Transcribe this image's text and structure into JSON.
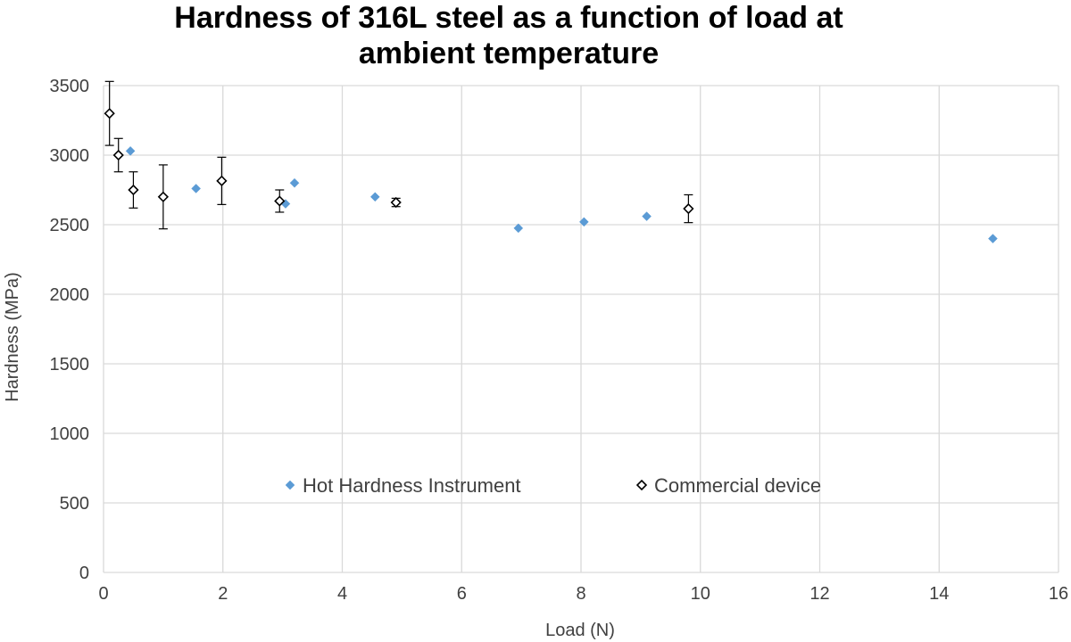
{
  "chart_data": {
    "type": "scatter",
    "title_lines": [
      "Hardness of 316L steel as a function of load at",
      "ambient temperature"
    ],
    "xlabel": "Load (N)",
    "ylabel": "Hardness (MPa)",
    "xlim": [
      0,
      16
    ],
    "ylim": [
      0,
      3500
    ],
    "x_ticks": [
      0,
      2,
      4,
      6,
      8,
      10,
      12,
      14,
      16
    ],
    "y_ticks": [
      0,
      500,
      1000,
      1500,
      2000,
      2500,
      3000,
      3500
    ],
    "grid": true,
    "legend_position": "center",
    "series": [
      {
        "name": "Hot Hardness Instrument",
        "marker": "filled-diamond",
        "color": "#5B9BD5",
        "points": [
          {
            "x": 0.45,
            "y": 3030
          },
          {
            "x": 1.55,
            "y": 2760
          },
          {
            "x": 3.05,
            "y": 2650
          },
          {
            "x": 3.2,
            "y": 2800
          },
          {
            "x": 4.55,
            "y": 2700
          },
          {
            "x": 6.95,
            "y": 2475
          },
          {
            "x": 8.05,
            "y": 2520
          },
          {
            "x": 9.1,
            "y": 2560
          },
          {
            "x": 14.9,
            "y": 2400
          }
        ]
      },
      {
        "name": "Commercial device",
        "marker": "hollow-diamond",
        "color": "#000000",
        "points": [
          {
            "x": 0.1,
            "y": 3300,
            "err": 230
          },
          {
            "x": 0.25,
            "y": 3000,
            "err": 120
          },
          {
            "x": 0.5,
            "y": 2750,
            "err": 130
          },
          {
            "x": 1.0,
            "y": 2700,
            "err": 230
          },
          {
            "x": 1.98,
            "y": 2815,
            "err": 170
          },
          {
            "x": 2.95,
            "y": 2670,
            "err": 80
          },
          {
            "x": 4.9,
            "y": 2660,
            "err": 30
          },
          {
            "x": 9.8,
            "y": 2615,
            "err": 100
          }
        ]
      }
    ]
  }
}
